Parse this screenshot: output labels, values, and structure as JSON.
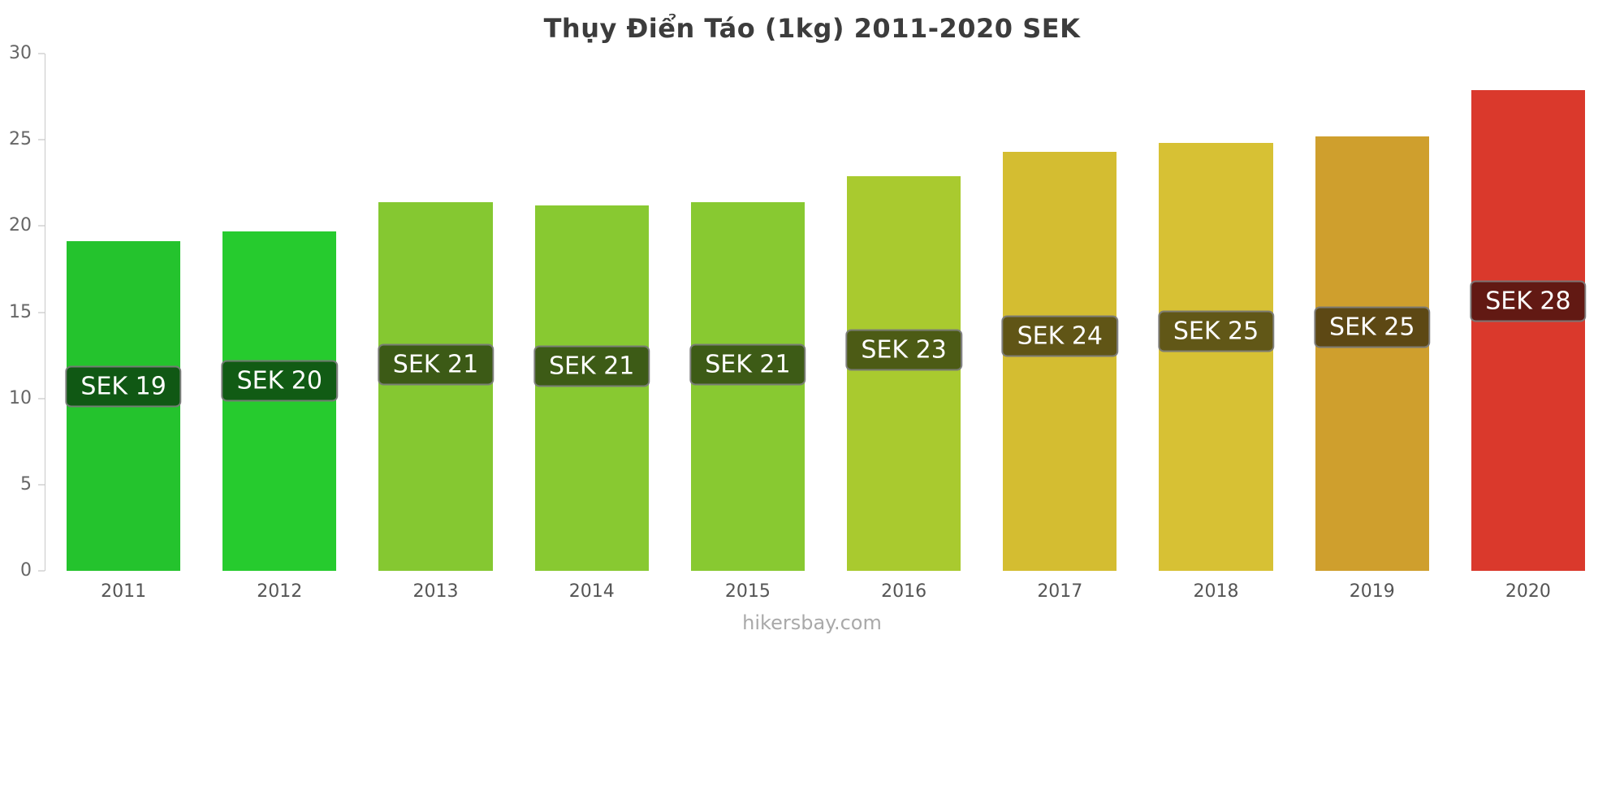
{
  "chart": {
    "title": "Thụy Điển Táo (1kg) 2011-2020 SEK"
  },
  "chart_data": {
    "type": "bar",
    "title": "Thụy Điển Táo (1kg) 2011-2020 SEK",
    "categories": [
      "2011",
      "2012",
      "2013",
      "2014",
      "2015",
      "2016",
      "2017",
      "2018",
      "2019",
      "2020"
    ],
    "values": [
      19.1,
      19.7,
      21.4,
      21.2,
      21.4,
      22.9,
      24.3,
      24.8,
      25.2,
      27.9
    ],
    "labels": [
      "SEK 19",
      "SEK 20",
      "SEK 21",
      "SEK 21",
      "SEK 21",
      "SEK 23",
      "SEK 24",
      "SEK 25",
      "SEK 25",
      "SEK 28"
    ],
    "bar_colors": [
      "#24c32d",
      "#26cb2e",
      "#85c831",
      "#88c931",
      "#88c931",
      "#a9ca2f",
      "#d4bd31",
      "#d7c134",
      "#cf9f2d",
      "#da392c"
    ],
    "xlabel": "",
    "ylabel": "",
    "ylim": [
      0,
      30
    ],
    "yticks": [
      0,
      5,
      10,
      15,
      20,
      25,
      30
    ],
    "grid": false,
    "legend": false
  },
  "footer": {
    "site": "hikersbay.com"
  }
}
